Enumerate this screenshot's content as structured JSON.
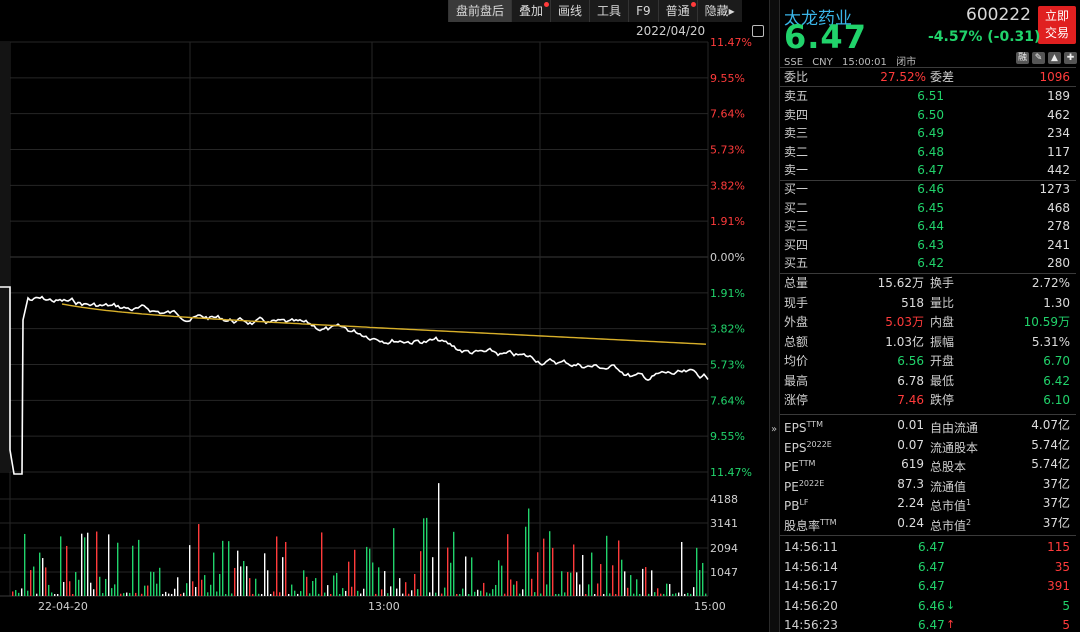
{
  "toolbar": {
    "items": [
      {
        "label": "盘前盘后",
        "dot": false,
        "active": true
      },
      {
        "label": "叠加",
        "dot": true,
        "active": false
      },
      {
        "label": "画线",
        "dot": false,
        "active": false
      },
      {
        "label": "工具",
        "dot": false,
        "active": false
      },
      {
        "label": "F9",
        "dot": false,
        "active": false
      },
      {
        "label": "普通",
        "dot": true,
        "active": false
      },
      {
        "label": "隐藏▸",
        "dot": false,
        "active": false
      }
    ]
  },
  "chart": {
    "date": "2022/04/20",
    "pct_labels": [
      {
        "text": "11.47%",
        "color": "#ff3b3b"
      },
      {
        "text": "9.55%",
        "color": "#ff3b3b"
      },
      {
        "text": "7.64%",
        "color": "#ff3b3b"
      },
      {
        "text": "5.73%",
        "color": "#ff3b3b"
      },
      {
        "text": "3.82%",
        "color": "#ff3b3b"
      },
      {
        "text": "1.91%",
        "color": "#ff3b3b"
      },
      {
        "text": "0.00%",
        "color": "#cfcfcf"
      },
      {
        "text": "1.91%",
        "color": "#21d36b"
      },
      {
        "text": "3.82%",
        "color": "#21d36b"
      },
      {
        "text": "5.73%",
        "color": "#21d36b"
      },
      {
        "text": "7.64%",
        "color": "#21d36b"
      },
      {
        "text": "9.55%",
        "color": "#21d36b"
      },
      {
        "text": "11.47%",
        "color": "#21d36b"
      }
    ],
    "vol_labels": [
      "4188",
      "3141",
      "2094",
      "1047"
    ],
    "time_labels": [
      "22-04-20",
      "13:00",
      "15:00"
    ],
    "colors": {
      "price": "#ffffff",
      "avg": "#d8b02a",
      "up": "#ff3b3b",
      "down": "#21d36b",
      "grid": "#262626"
    }
  },
  "quote": {
    "name": "太龙药业",
    "code": "600222",
    "trade_button": [
      "立即",
      "交易"
    ],
    "price": "6.47",
    "change": "-4.57% (-0.31)",
    "meta": [
      "SSE",
      "CNY",
      "15:00:01",
      "闭市"
    ],
    "mini_icons": [
      "融",
      "✎",
      "▲",
      "✚"
    ],
    "weibi": {
      "label": "委比",
      "value": "27.52%",
      "label2": "委差",
      "value2": "1096"
    },
    "asks": [
      {
        "label": "卖五",
        "price": "6.51",
        "vol": "189"
      },
      {
        "label": "卖四",
        "price": "6.50",
        "vol": "462"
      },
      {
        "label": "卖三",
        "price": "6.49",
        "vol": "234"
      },
      {
        "label": "卖二",
        "price": "6.48",
        "vol": "117"
      },
      {
        "label": "卖一",
        "price": "6.47",
        "vol": "442"
      }
    ],
    "bids": [
      {
        "label": "买一",
        "price": "6.46",
        "vol": "1273"
      },
      {
        "label": "买二",
        "price": "6.45",
        "vol": "468"
      },
      {
        "label": "买三",
        "price": "6.44",
        "vol": "278"
      },
      {
        "label": "买四",
        "price": "6.43",
        "vol": "241"
      },
      {
        "label": "买五",
        "price": "6.42",
        "vol": "280"
      }
    ],
    "stats": [
      {
        "l1": "总量",
        "v1": "15.62万",
        "c1": "white",
        "l2": "换手",
        "v2": "2.72%",
        "c2": "white"
      },
      {
        "l1": "现手",
        "v1": "518",
        "c1": "white",
        "l2": "量比",
        "v2": "1.30",
        "c2": "white"
      },
      {
        "l1": "外盘",
        "v1": "5.03万",
        "c1": "red",
        "l2": "内盘",
        "v2": "10.59万",
        "c2": "green"
      },
      {
        "l1": "总额",
        "v1": "1.03亿",
        "c1": "white",
        "l2": "振幅",
        "v2": "5.31%",
        "c2": "white"
      },
      {
        "l1": "均价",
        "v1": "6.56",
        "c1": "green",
        "l2": "开盘",
        "v2": "6.70",
        "c2": "green"
      },
      {
        "l1": "最高",
        "v1": "6.78",
        "c1": "white",
        "l2": "最低",
        "v2": "6.42",
        "c2": "green"
      },
      {
        "l1": "涨停",
        "v1": "7.46",
        "c1": "red",
        "l2": "跌停",
        "v2": "6.10",
        "c2": "green"
      }
    ],
    "fundamentals": [
      {
        "l1": "EPS",
        "s1": "TTM",
        "v1": "0.01",
        "l2": "自由流通",
        "s2": "",
        "v2": "4.07亿"
      },
      {
        "l1": "EPS",
        "s1": "2022E",
        "v1": "0.07",
        "l2": "流通股本",
        "s2": "",
        "v2": "5.74亿"
      },
      {
        "l1": "PE",
        "s1": "TTM",
        "v1": "619",
        "l2": "总股本",
        "s2": "",
        "v2": "5.74亿"
      },
      {
        "l1": "PE",
        "s1": "2022E",
        "v1": "87.3",
        "l2": "流通值",
        "s2": "",
        "v2": "37亿"
      },
      {
        "l1": "PB",
        "s1": "LF",
        "v1": "2.24",
        "l2": "总市值",
        "s2": "1",
        "v2": "37亿"
      },
      {
        "l1": "股息率",
        "s1": "TTM",
        "v1": "0.24",
        "l2": "总市值",
        "s2": "2",
        "v2": "37亿"
      }
    ],
    "ticks": [
      {
        "time": "14:56:11",
        "price": "6.47",
        "arrow": "",
        "vol": "115",
        "vcolor": "red"
      },
      {
        "time": "14:56:14",
        "price": "6.47",
        "arrow": "",
        "vol": "35",
        "vcolor": "red"
      },
      {
        "time": "14:56:17",
        "price": "6.47",
        "arrow": "",
        "vol": "391",
        "vcolor": "red"
      },
      {
        "time": "14:56:20",
        "price": "6.46",
        "arrow": "↓",
        "vol": "5",
        "vcolor": "green"
      },
      {
        "time": "14:56:23",
        "price": "6.47",
        "arrow": "↑",
        "vol": "5",
        "vcolor": "red"
      }
    ]
  }
}
